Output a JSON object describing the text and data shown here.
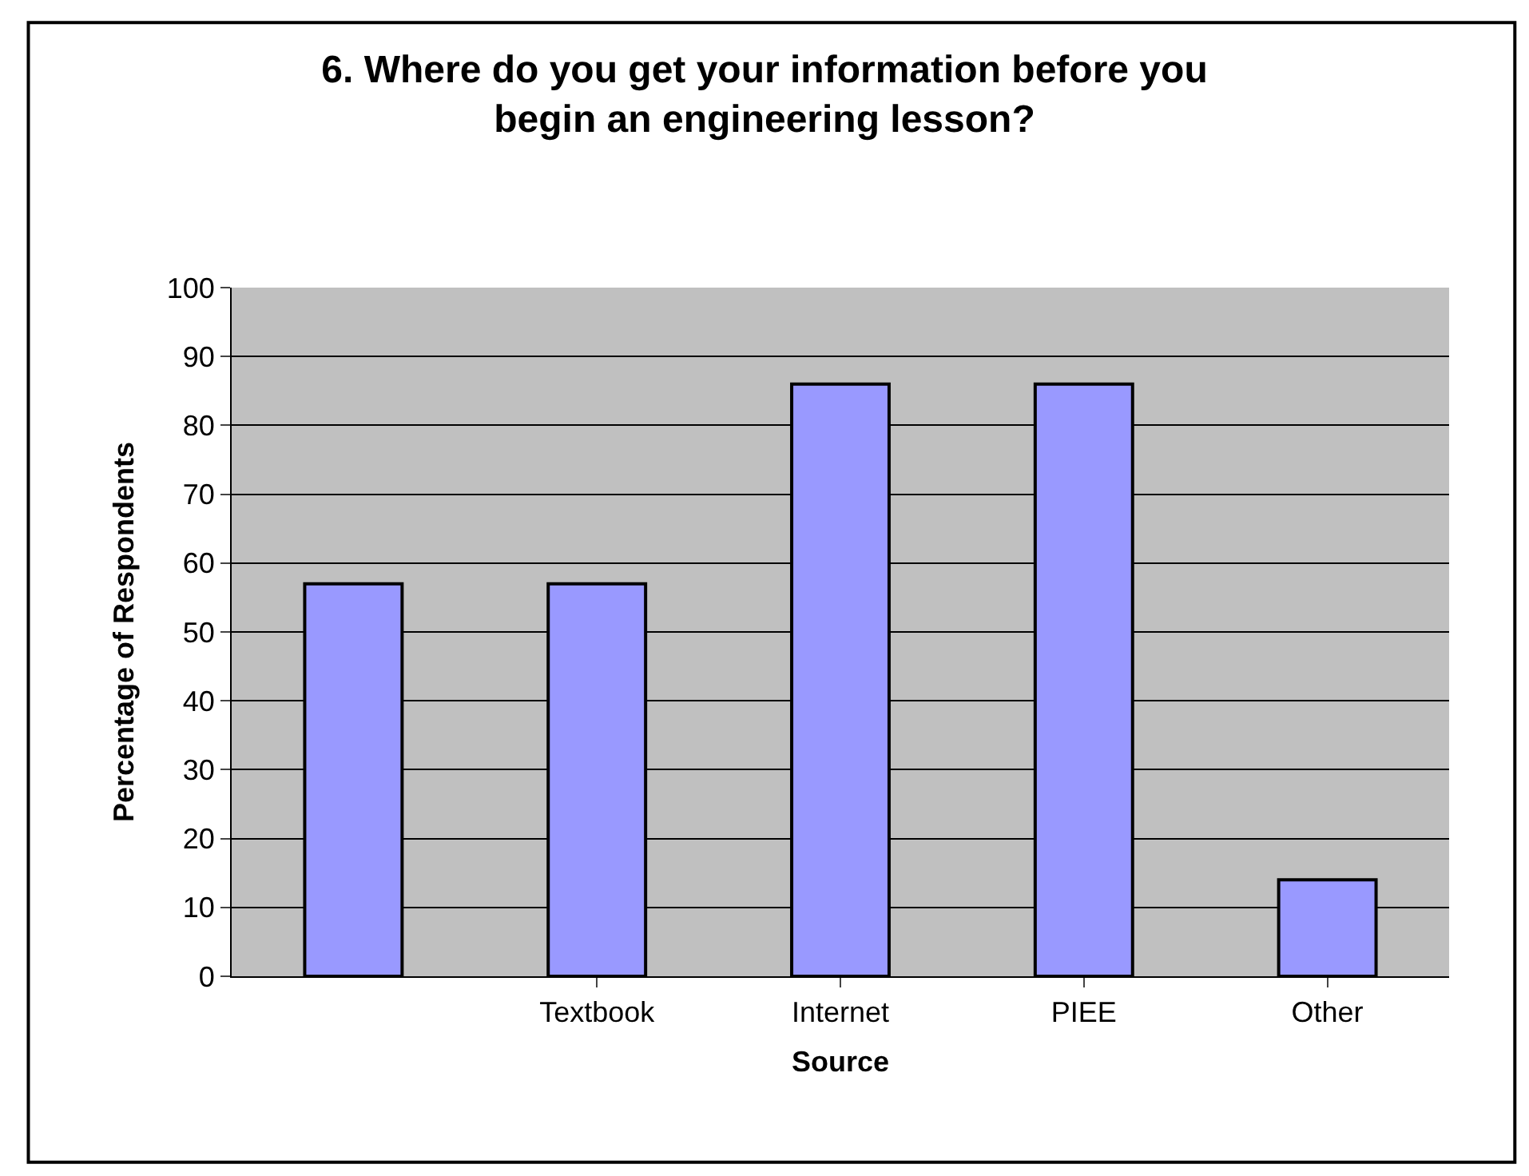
{
  "chart_data": {
    "type": "bar",
    "title": "6. Where do you get your information before you begin an engineering lesson?",
    "xlabel": "Source",
    "ylabel": "Percentage of Respondents",
    "categories": [
      null,
      "Textbook",
      "Internet",
      "PIEE",
      "Other"
    ],
    "values": [
      57,
      57,
      86,
      86,
      14
    ],
    "color": "#9999ff",
    "ylim": [
      0,
      100
    ],
    "yticks": [
      0,
      10,
      20,
      30,
      40,
      50,
      60,
      70,
      80,
      90,
      100
    ],
    "grid": "y"
  }
}
